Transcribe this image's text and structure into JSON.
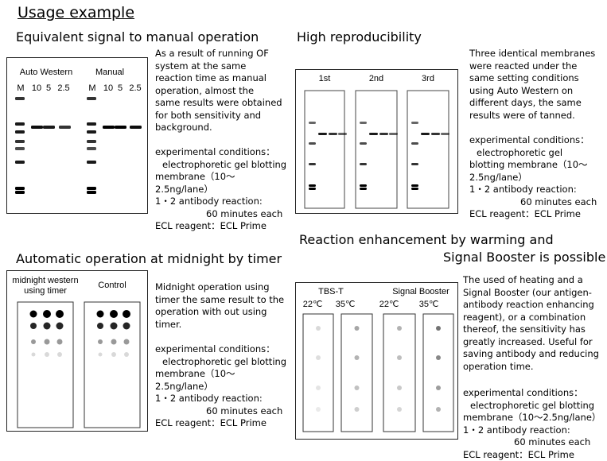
{
  "header": {
    "title": "Usage example"
  },
  "sections": [
    {
      "title": [
        "Equivalent signal to manual operation"
      ],
      "blot_labels": [
        "Auto Western",
        "Manual",
        "M",
        "10",
        "5",
        "2.5",
        "M",
        "10",
        "5",
        "2.5"
      ],
      "text": [
        "As a result of running OF",
        "system at the same",
        "reaction time as manual",
        "operation,  almost the",
        "same results were obtained",
        "for both sensitivity and",
        "background."
      ],
      "conditions": [
        "experimental conditions：",
        "electrophoretic gel blotting",
        "membrane（10～",
        "2.5ng/lane）",
        "1・2 antibody reaction:",
        "60 minutes each",
        "ECL reagent：ECL Prime"
      ]
    },
    {
      "title": [
        "High reproducibility"
      ],
      "blot_labels": [
        "1st",
        "2nd",
        "3rd"
      ],
      "text": [
        "Three identical membranes",
        "were reacted under the",
        "same setting conditions",
        "using Auto Western on",
        "different days,  the same",
        "results were of tanned."
      ],
      "conditions": [
        "experimental conditions：",
        "electrophoretic gel",
        "blotting membrane（10～",
        "2.5ng/lane）",
        "1・2 antibody reaction:",
        "60 minutes each",
        "ECL reagent：ECL Prime"
      ]
    },
    {
      "title": [
        "Automatic operation at midnight by timer"
      ],
      "blot_labels": [
        "midnight western",
        "using timer",
        "Control"
      ],
      "text": [
        "Midnight operation using",
        "timer the same result  to the",
        "operation with out using",
        "timer."
      ],
      "conditions": [
        "experimental conditions：",
        "electrophoretic gel blotting",
        "membrane（10～",
        "2.5ng/lane）",
        "1・2 antibody reaction:",
        "60 minutes each",
        "ECL reagent：ECL Prime"
      ]
    },
    {
      "title": [
        "Reaction enhancement by warming and",
        "Signal Booster is possible"
      ],
      "blot_labels": [
        "TBS-T",
        "Signal Booster",
        "22℃",
        "35℃",
        "22℃",
        "35℃"
      ],
      "text": [
        "The used  of heating and a",
        "Signal Booster (our antigen-",
        "antibody reaction enhancing",
        "reagent), or a combination",
        "thereof, the sensitivity has",
        "greatly increased. Useful for",
        "saving antibody and reducing",
        "operation time."
      ],
      "conditions": [
        "experimental conditions：",
        "electrophoretic gel blotting",
        "membrane（10～2.5ng/lane）",
        "1・2 antibody reaction:",
        "60 minutes each",
        "ECL reagent：ECL Prime"
      ]
    }
  ]
}
